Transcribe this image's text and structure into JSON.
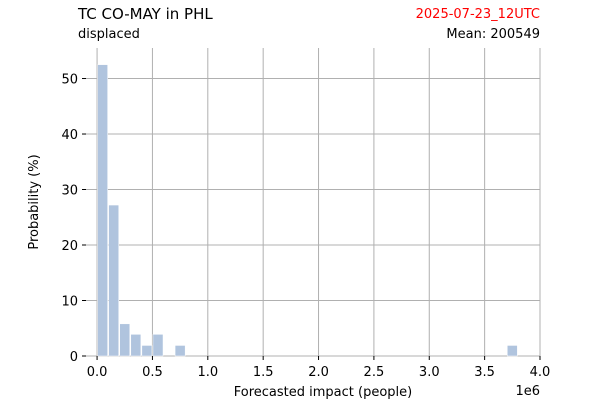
{
  "header": {
    "title": "TC CO-MAY in PHL",
    "subtitle": "displaced",
    "timestamp": "2025-07-23_12UTC",
    "mean_label": "Mean:",
    "mean_value": "200549"
  },
  "colors": {
    "bar": "#b0c4de",
    "grid": "#b0b0b0",
    "timestamp": "#ff0000"
  },
  "chart_data": {
    "type": "bar",
    "title": "TC CO-MAY in PHL",
    "subtitle": "displaced",
    "xlabel": "Forecasted impact (people)",
    "ylabel": "Probability (%)",
    "x_scale_label": "1e6",
    "xlim": [
      -0.1,
      4.0
    ],
    "ylim": [
      0,
      55.5
    ],
    "xticks": [
      0.0,
      0.5,
      1.0,
      1.5,
      2.0,
      2.5,
      3.0,
      3.5,
      4.0
    ],
    "xtick_labels": [
      "0.0",
      "0.5",
      "1.0",
      "1.5",
      "2.0",
      "2.5",
      "3.0",
      "3.5",
      "4.0"
    ],
    "yticks": [
      0,
      10,
      20,
      30,
      40,
      50
    ],
    "ytick_labels": [
      "0",
      "10",
      "20",
      "30",
      "40",
      "50"
    ],
    "bin_width": 0.1,
    "bars": [
      {
        "x": 0.05,
        "value": 52.5
      },
      {
        "x": 0.15,
        "value": 27.2
      },
      {
        "x": 0.25,
        "value": 5.8
      },
      {
        "x": 0.35,
        "value": 3.9
      },
      {
        "x": 0.45,
        "value": 1.9
      },
      {
        "x": 0.55,
        "value": 3.9
      },
      {
        "x": 0.75,
        "value": 1.9
      },
      {
        "x": 3.75,
        "value": 1.9
      }
    ],
    "grid": true,
    "legend": "none"
  }
}
